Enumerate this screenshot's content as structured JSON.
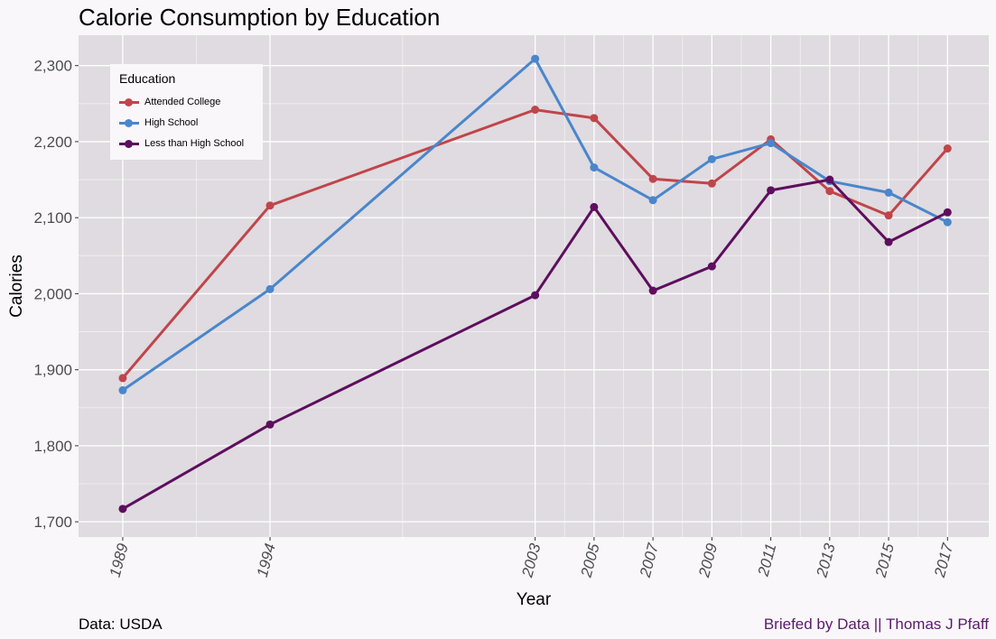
{
  "chart_data": {
    "type": "line",
    "title": "Calorie Consumption by Education",
    "xlabel": "Year",
    "ylabel": "Calories",
    "x": [
      1989,
      1994,
      2003,
      2005,
      2007,
      2009,
      2011,
      2013,
      2015,
      2017
    ],
    "x_tick_labels": [
      "1989",
      "1994",
      "2003",
      "2005",
      "2007",
      "2009",
      "2011",
      "2013",
      "2015",
      "2017"
    ],
    "xlim": [
      1987.5,
      2018.4
    ],
    "ylim": [
      1680,
      2340
    ],
    "y_ticks": [
      1700,
      1800,
      1900,
      2000,
      2100,
      2200,
      2300
    ],
    "y_tick_labels": [
      "1,700",
      "1,800",
      "1,900",
      "2,000",
      "2,100",
      "2,200",
      "2,300"
    ],
    "grid": true,
    "legend": {
      "title": "Education",
      "position": "top-left"
    },
    "series": [
      {
        "name": "Attended College",
        "color": "#c0454a",
        "values": [
          1889,
          2116,
          2242,
          2231,
          2151,
          2145,
          2203,
          2135,
          2103,
          2191
        ]
      },
      {
        "name": "High School",
        "color": "#4a86cc",
        "values": [
          1873,
          2006,
          2309,
          2166,
          2123,
          2177,
          2198,
          2148,
          2133,
          2094
        ]
      },
      {
        "name": "Less than High School",
        "color": "#5e0e5e",
        "values": [
          1717,
          1828,
          1998,
          2114,
          2004,
          2036,
          2136,
          2150,
          2068,
          2107
        ]
      }
    ]
  },
  "captions": {
    "source": "Data: USDA",
    "credit": "Briefed by Data || Thomas J Pfaff"
  }
}
